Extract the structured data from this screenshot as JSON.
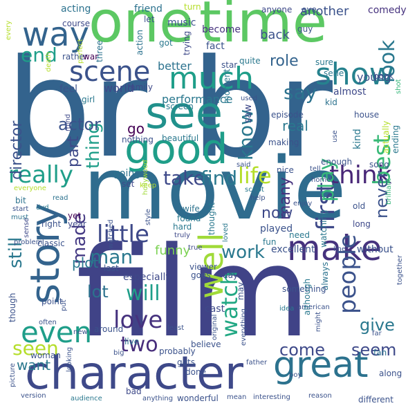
{
  "words": [
    {
      "text": "br",
      "color": "#33638d"
    },
    {
      "text": "br",
      "color": "#33638d"
    },
    {
      "text": "movie",
      "color": "#2f6c8e"
    },
    {
      "text": "film",
      "color": "#404387"
    },
    {
      "text": "one",
      "color": "#5cc863"
    },
    {
      "text": "time",
      "color": "#5cc863"
    },
    {
      "text": "character",
      "color": "#3e4989"
    },
    {
      "text": "story",
      "color": "#33638d"
    },
    {
      "text": "see",
      "color": "#21918c"
    },
    {
      "text": "good",
      "color": "#1f9e89"
    },
    {
      "text": "make",
      "color": "#46327e"
    },
    {
      "text": "well",
      "color": "#a0da39"
    },
    {
      "text": "great",
      "color": "#2c728e"
    },
    {
      "text": "way",
      "color": "#33638d"
    },
    {
      "text": "scene",
      "color": "#3b528b"
    },
    {
      "text": "much",
      "color": "#1f9e89"
    },
    {
      "text": "show",
      "color": "#26828e"
    },
    {
      "text": "even",
      "color": "#1f9e89"
    },
    {
      "text": "people",
      "color": "#3b528b"
    },
    {
      "text": "really",
      "color": "#1f9e89"
    },
    {
      "text": "take",
      "color": "#3e4989"
    },
    {
      "text": "find",
      "color": "#2a788e"
    },
    {
      "text": "life",
      "color": "#b5de2b"
    },
    {
      "text": "think",
      "color": "#482677"
    },
    {
      "text": "first",
      "color": "#3e4989"
    },
    {
      "text": "watch",
      "color": "#22a884"
    },
    {
      "text": "best",
      "color": "#38b977"
    },
    {
      "text": "little",
      "color": "#3e4989"
    },
    {
      "text": "love",
      "color": "#46327e"
    },
    {
      "text": "two",
      "color": "#472d7b"
    },
    {
      "text": "seen",
      "color": "#b5de2b"
    },
    {
      "text": "look",
      "color": "#2a788e"
    },
    {
      "text": "end",
      "color": "#1f9e89"
    },
    {
      "text": "know",
      "color": "#2a788e"
    },
    {
      "text": "say",
      "color": "#2c728e"
    },
    {
      "text": "role",
      "color": "#33638d"
    },
    {
      "text": "play",
      "color": "#35b779"
    },
    {
      "text": "part",
      "color": "#3e4989"
    },
    {
      "text": "thing",
      "color": "#1f9e89"
    },
    {
      "text": "director",
      "color": "#3b528b"
    },
    {
      "text": "actor",
      "color": "#3b528b"
    },
    {
      "text": "still",
      "color": "#2a788e"
    },
    {
      "text": "made",
      "color": "#443983"
    },
    {
      "text": "man",
      "color": "#2a788e"
    },
    {
      "text": "work",
      "color": "#2a788e"
    },
    {
      "text": "will",
      "color": "#1f9e89"
    },
    {
      "text": "lot",
      "color": "#2c728e"
    },
    {
      "text": "want",
      "color": "#2a788e"
    },
    {
      "text": "come",
      "color": "#3e4989"
    },
    {
      "text": "seem",
      "color": "#3e4989"
    },
    {
      "text": "give",
      "color": "#2a788e"
    },
    {
      "text": "never",
      "color": "#3b528b"
    },
    {
      "text": "many",
      "color": "#46327e"
    },
    {
      "text": "now",
      "color": "#3e4989"
    },
    {
      "text": "go",
      "color": "#440154"
    },
    {
      "text": "plot",
      "color": "#2a788e"
    },
    {
      "text": "funny",
      "color": "#7ad151"
    },
    {
      "text": "performance",
      "color": "#2a788e"
    },
    {
      "text": "better",
      "color": "#2c728e"
    },
    {
      "text": "world",
      "color": "#3e4989"
    },
    {
      "text": "back",
      "color": "#3b528b"
    },
    {
      "text": "another",
      "color": "#3b528b"
    },
    {
      "text": "almost",
      "color": "#3e4989"
    },
    {
      "text": "young",
      "color": "#3b528b"
    },
    {
      "text": "comedy",
      "color": "#46327e"
    },
    {
      "text": "acting",
      "color": "#2c728e"
    },
    {
      "text": "friend",
      "color": "#2c728e"
    },
    {
      "text": "music",
      "color": "#3b528b"
    },
    {
      "text": "become",
      "color": "#46327e"
    },
    {
      "text": "anyone",
      "color": "#3e4989"
    },
    {
      "text": "eye",
      "color": "#3b528b"
    },
    {
      "text": "course",
      "color": "#3e4989"
    },
    {
      "text": "let",
      "color": "#3b528b"
    },
    {
      "text": "turn",
      "color": "#b5de2b"
    },
    {
      "text": "guy",
      "color": "#3b528b"
    },
    {
      "text": "every",
      "color": "#b5de2b"
    },
    {
      "text": "perfect",
      "color": "#b5de2b"
    },
    {
      "text": "three",
      "color": "#2c728e"
    },
    {
      "text": "action",
      "color": "#2c728e"
    },
    {
      "text": "got",
      "color": "#2a788e"
    },
    {
      "text": "trying",
      "color": "#3e4989"
    },
    {
      "text": "sure",
      "color": "#2a788e"
    },
    {
      "text": "fact",
      "color": "#3b528b"
    },
    {
      "text": "quite",
      "color": "#2a788e"
    },
    {
      "text": "rather",
      "color": "#3b528b"
    },
    {
      "text": "war",
      "color": "#440154"
    },
    {
      "text": "star",
      "color": "#3b528b"
    },
    {
      "text": "serie",
      "color": "#2a788e"
    },
    {
      "text": "book",
      "color": "#3b528b"
    },
    {
      "text": "death",
      "color": "#b5de2b"
    },
    {
      "text": "feel",
      "color": "#3b528b"
    },
    {
      "text": "family",
      "color": "#3e4989"
    },
    {
      "text": "girl",
      "color": "#2a788e"
    },
    {
      "text": "screen",
      "color": "#2a788e"
    },
    {
      "text": "used",
      "color": "#3b528b"
    },
    {
      "text": "kid",
      "color": "#2c728e"
    },
    {
      "text": "shot",
      "color": "#35b779"
    },
    {
      "text": "house",
      "color": "#3b528b"
    },
    {
      "text": "moment",
      "color": "#2a788e"
    },
    {
      "text": "episode",
      "color": "#3b528b"
    },
    {
      "text": "real",
      "color": "#2a788e"
    },
    {
      "text": "nothing",
      "color": "#3b528b"
    },
    {
      "text": "beautiful",
      "color": "#2a788e"
    },
    {
      "text": "mind",
      "color": "#3e4989"
    },
    {
      "text": "making",
      "color": "#3b528b"
    },
    {
      "text": "saw",
      "color": "#3e4989"
    },
    {
      "text": "enough",
      "color": "#3b528b"
    },
    {
      "text": "kind",
      "color": "#2a788e"
    },
    {
      "text": "actually",
      "color": "#b5de2b"
    },
    {
      "text": "song",
      "color": "#3b528b"
    },
    {
      "text": "ending",
      "color": "#2a788e"
    },
    {
      "text": "use",
      "color": "#3b528b"
    },
    {
      "text": "nice",
      "color": "#3b528b"
    },
    {
      "text": "said",
      "color": "#3b528b"
    },
    {
      "text": "tell",
      "color": "#3b528b"
    },
    {
      "text": "going",
      "color": "#2c728e"
    },
    {
      "text": "everyone",
      "color": "#b5de2b"
    },
    {
      "text": "keep",
      "color": "#b5de2b"
    },
    {
      "text": "script",
      "color": "#2a788e"
    },
    {
      "text": "home",
      "color": "#3b528b"
    },
    {
      "text": "brilliant",
      "color": "#35b779"
    },
    {
      "text": "set",
      "color": "#3e4989"
    },
    {
      "text": "bit",
      "color": "#2c728e"
    },
    {
      "text": "year",
      "color": "#3e4989"
    },
    {
      "text": "read",
      "color": "#2c728e"
    },
    {
      "text": "hollywood",
      "color": "#a0da39"
    },
    {
      "text": "enjoy",
      "color": "#3b528b"
    },
    {
      "text": "start",
      "color": "#3b528b"
    },
    {
      "text": "dvd",
      "color": "#2a788e"
    },
    {
      "text": "help",
      "color": "#3b528b"
    },
    {
      "text": "old",
      "color": "#3b528b"
    },
    {
      "text": "must",
      "color": "#2c728e"
    },
    {
      "text": "wife",
      "color": "#2c728e"
    },
    {
      "text": "found",
      "color": "#2a788e"
    },
    {
      "text": "sense",
      "color": "#3e4989"
    },
    {
      "text": "right",
      "color": "#3b528b"
    },
    {
      "text": "yet",
      "color": "#440154"
    },
    {
      "text": "style",
      "color": "#3b528b"
    },
    {
      "text": "hard",
      "color": "#2a788e"
    },
    {
      "text": "thought",
      "color": "#2a788e"
    },
    {
      "text": "watching",
      "color": "#2a788e"
    },
    {
      "text": "long",
      "color": "#3e4989"
    },
    {
      "text": "played",
      "color": "#3b528b"
    },
    {
      "text": "need",
      "color": "#2a788e"
    },
    {
      "text": "problem",
      "color": "#3b528b"
    },
    {
      "text": "classic",
      "color": "#3b528b"
    },
    {
      "text": "watched",
      "color": "#3b528b"
    },
    {
      "text": "truly",
      "color": "#3e4989"
    },
    {
      "text": "loved",
      "color": "#2a788e"
    },
    {
      "text": "fun",
      "color": "#2a788e"
    },
    {
      "text": "excellent",
      "color": "#3b528b"
    },
    {
      "text": "line",
      "color": "#3b528b"
    },
    {
      "text": "without",
      "color": "#3b528b"
    },
    {
      "text": "last",
      "color": "#3b528b"
    },
    {
      "text": "true",
      "color": "#3e4989"
    },
    {
      "text": "viewer",
      "color": "#3b528b"
    },
    {
      "text": "goes",
      "color": "#3b528b"
    },
    {
      "text": "idea",
      "color": "#2a788e"
    },
    {
      "text": "american",
      "color": "#3b528b"
    },
    {
      "text": "especially",
      "color": "#3e4989"
    },
    {
      "text": "day",
      "color": "#3e4989"
    },
    {
      "text": "may",
      "color": "#3b528b"
    },
    {
      "text": "point",
      "color": "#3b528b"
    },
    {
      "text": "always",
      "color": "#2c728e"
    },
    {
      "text": "something",
      "color": "#3b528b"
    },
    {
      "text": "although",
      "color": "#2a788e"
    },
    {
      "text": "together",
      "color": "#3b528b"
    },
    {
      "text": "though",
      "color": "#3b528b"
    },
    {
      "text": "put",
      "color": "#3b528b"
    },
    {
      "text": "often",
      "color": "#3b528b"
    },
    {
      "text": "cast",
      "color": "#3e4989"
    },
    {
      "text": "original",
      "color": "#3b528b"
    },
    {
      "text": "everything",
      "color": "#3b528b"
    },
    {
      "text": "might",
      "color": "#3b528b"
    },
    {
      "text": "far",
      "color": "#3b528b"
    },
    {
      "text": "least",
      "color": "#3b528b"
    },
    {
      "text": "around",
      "color": "#3b528b"
    },
    {
      "text": "live",
      "color": "#2c728e"
    },
    {
      "text": "fan",
      "color": "#2c728e"
    },
    {
      "text": "new",
      "color": "#3b528b"
    },
    {
      "text": "big",
      "color": "#3b528b"
    },
    {
      "text": "probably",
      "color": "#3b528b"
    },
    {
      "text": "believe",
      "color": "#3b528b"
    },
    {
      "text": "woman",
      "color": "#3b528b"
    },
    {
      "text": "looking",
      "color": "#3b528b"
    },
    {
      "text": "gets",
      "color": "#3b528b"
    },
    {
      "text": "done",
      "color": "#3b528b"
    },
    {
      "text": "father",
      "color": "#3b528b"
    },
    {
      "text": "boy",
      "color": "#3b528b"
    },
    {
      "text": "along",
      "color": "#3b528b"
    },
    {
      "text": "picture",
      "color": "#3b528b"
    },
    {
      "text": "bad",
      "color": "#3e4989"
    },
    {
      "text": "wonderful",
      "color": "#3b528b"
    },
    {
      "text": "mean",
      "color": "#3b528b"
    },
    {
      "text": "version",
      "color": "#3b528b"
    },
    {
      "text": "audience",
      "color": "#2a788e"
    },
    {
      "text": "anything",
      "color": "#3b528b"
    },
    {
      "text": "interesting",
      "color": "#3b528b"
    },
    {
      "text": "reason",
      "color": "#3b528b"
    },
    {
      "text": "different",
      "color": "#3b528b"
    }
  ]
}
